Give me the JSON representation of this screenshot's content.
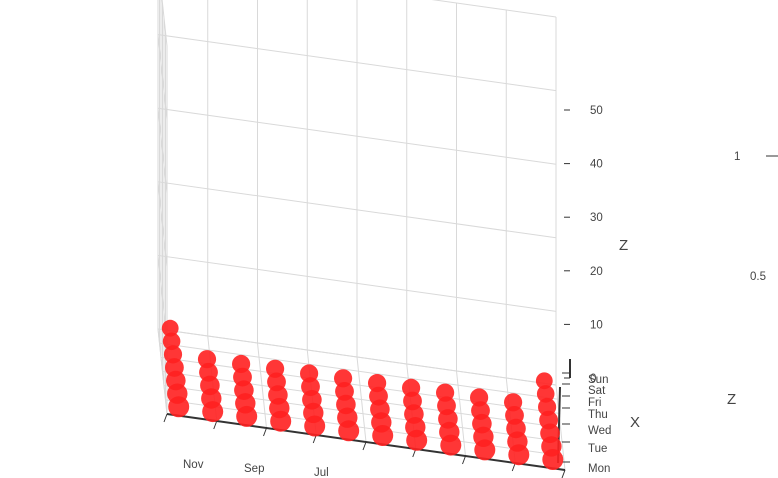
{
  "chart_data": {
    "type": "scatter",
    "mode": "3d",
    "x_axis": {
      "name": "X",
      "categories": [
        "Mon",
        "Tue",
        "Wed",
        "Thu",
        "Fri",
        "Sat",
        "Sun"
      ]
    },
    "y_axis": {
      "name": "",
      "categories": [
        "Nov",
        "Sep",
        "Jul"
      ]
    },
    "z_axis": {
      "name": "Z",
      "range": [
        0,
        50
      ],
      "ticks": [
        "0",
        "10",
        "20",
        "30",
        "40",
        "50"
      ]
    },
    "visual_map": {
      "name": "Z",
      "labels": [
        "1",
        "0.5"
      ]
    },
    "points_y_columns": 12,
    "points": [
      {
        "x": 0,
        "y": 0,
        "z": 0
      },
      {
        "x": 0,
        "y": 1,
        "z": 0
      },
      {
        "x": 0,
        "y": 2,
        "z": 0
      },
      {
        "x": 0,
        "y": 3,
        "z": 0
      },
      {
        "x": 0,
        "y": 4,
        "z": 0
      },
      {
        "x": 0,
        "y": 5,
        "z": 0
      },
      {
        "x": 0,
        "y": 6,
        "z": 0
      },
      {
        "x": 0,
        "y": 7,
        "z": 0
      },
      {
        "x": 0,
        "y": 8,
        "z": 0
      },
      {
        "x": 0,
        "y": 9,
        "z": 0
      },
      {
        "x": 0,
        "y": 10,
        "z": 0
      },
      {
        "x": 0,
        "y": 11,
        "z": 0
      },
      {
        "x": 1,
        "y": 0,
        "z": 0
      },
      {
        "x": 1,
        "y": 1,
        "z": 0
      },
      {
        "x": 1,
        "y": 2,
        "z": 0
      },
      {
        "x": 1,
        "y": 3,
        "z": 0
      },
      {
        "x": 1,
        "y": 4,
        "z": 0
      },
      {
        "x": 1,
        "y": 5,
        "z": 0
      },
      {
        "x": 1,
        "y": 6,
        "z": 0
      },
      {
        "x": 1,
        "y": 7,
        "z": 0
      },
      {
        "x": 1,
        "y": 8,
        "z": 0
      },
      {
        "x": 1,
        "y": 9,
        "z": 0
      },
      {
        "x": 1,
        "y": 10,
        "z": 0
      },
      {
        "x": 1,
        "y": 11,
        "z": 0
      },
      {
        "x": 2,
        "y": 0,
        "z": 0
      },
      {
        "x": 2,
        "y": 1,
        "z": 0
      },
      {
        "x": 2,
        "y": 2,
        "z": 0
      },
      {
        "x": 2,
        "y": 3,
        "z": 0
      },
      {
        "x": 2,
        "y": 4,
        "z": 0
      },
      {
        "x": 2,
        "y": 5,
        "z": 0
      },
      {
        "x": 2,
        "y": 6,
        "z": 0
      },
      {
        "x": 2,
        "y": 7,
        "z": 0
      },
      {
        "x": 2,
        "y": 8,
        "z": 0
      },
      {
        "x": 2,
        "y": 9,
        "z": 0
      },
      {
        "x": 2,
        "y": 10,
        "z": 0
      },
      {
        "x": 2,
        "y": 11,
        "z": 0
      },
      {
        "x": 3,
        "y": 0,
        "z": 0
      },
      {
        "x": 3,
        "y": 1,
        "z": 0
      },
      {
        "x": 3,
        "y": 2,
        "z": 0
      },
      {
        "x": 3,
        "y": 3,
        "z": 0
      },
      {
        "x": 3,
        "y": 4,
        "z": 0
      },
      {
        "x": 3,
        "y": 5,
        "z": 0
      },
      {
        "x": 3,
        "y": 6,
        "z": 0
      },
      {
        "x": 3,
        "y": 7,
        "z": 0
      },
      {
        "x": 3,
        "y": 8,
        "z": 0
      },
      {
        "x": 3,
        "y": 9,
        "z": 0
      },
      {
        "x": 3,
        "y": 10,
        "z": 0
      },
      {
        "x": 3,
        "y": 11,
        "z": 0
      },
      {
        "x": 4,
        "y": 0,
        "z": 0
      },
      {
        "x": 4,
        "y": 1,
        "z": 0
      },
      {
        "x": 4,
        "y": 2,
        "z": 0
      },
      {
        "x": 4,
        "y": 3,
        "z": 0
      },
      {
        "x": 4,
        "y": 4,
        "z": 0
      },
      {
        "x": 4,
        "y": 5,
        "z": 0
      },
      {
        "x": 4,
        "y": 6,
        "z": 0
      },
      {
        "x": 4,
        "y": 7,
        "z": 0
      },
      {
        "x": 4,
        "y": 8,
        "z": 0
      },
      {
        "x": 4,
        "y": 9,
        "z": 0
      },
      {
        "x": 4,
        "y": 10,
        "z": 0
      },
      {
        "x": 4,
        "y": 11,
        "z": 0
      },
      {
        "x": 5,
        "y": 0,
        "z": 0
      },
      {
        "x": 5,
        "y": 11,
        "z": 0
      },
      {
        "x": 6,
        "y": 0,
        "z": 0
      },
      {
        "x": 6,
        "y": 11,
        "z": 0
      }
    ],
    "grid": true,
    "colors": {
      "point": "#ff2020",
      "grid": "#d9d9d9",
      "axis": "#333333"
    }
  }
}
